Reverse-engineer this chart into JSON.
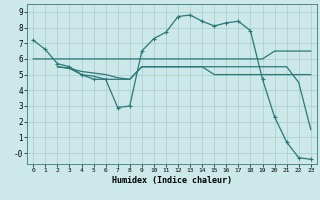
{
  "title": "",
  "xlabel": "Humidex (Indice chaleur)",
  "bg_color": "#cce8e8",
  "grid_color": "#aacccc",
  "line_color": "#2a7878",
  "xlim": [
    -0.5,
    23.5
  ],
  "ylim": [
    -0.7,
    9.5
  ],
  "xticks": [
    0,
    1,
    2,
    3,
    4,
    5,
    6,
    7,
    8,
    9,
    10,
    11,
    12,
    13,
    14,
    15,
    16,
    17,
    18,
    19,
    20,
    21,
    22,
    23
  ],
  "yticks": [
    0,
    1,
    2,
    3,
    4,
    5,
    6,
    7,
    8,
    9
  ],
  "ytick_labels": [
    "-0",
    "1",
    "2",
    "3",
    "4",
    "5",
    "6",
    "7",
    "8",
    "9"
  ],
  "line1_x": [
    0,
    1,
    2,
    3,
    4,
    5,
    6,
    7,
    8,
    9,
    10,
    11,
    12,
    13,
    14,
    15,
    16,
    17,
    18,
    19,
    20,
    21,
    22,
    23
  ],
  "line1_y": [
    7.2,
    6.6,
    5.7,
    5.5,
    5.0,
    4.7,
    4.7,
    2.9,
    3.0,
    6.5,
    7.3,
    7.7,
    8.7,
    8.8,
    8.4,
    8.1,
    8.3,
    8.4,
    7.8,
    4.7,
    2.3,
    0.7,
    -0.3,
    -0.4
  ],
  "line2_x": [
    0,
    1,
    2,
    3,
    4,
    5,
    6,
    7,
    8,
    9,
    10,
    11,
    12,
    13,
    14,
    15,
    16,
    17,
    18,
    19,
    20,
    21,
    22,
    23
  ],
  "line2_y": [
    6.0,
    6.0,
    6.0,
    6.0,
    6.0,
    6.0,
    6.0,
    6.0,
    6.0,
    6.0,
    6.0,
    6.0,
    6.0,
    6.0,
    6.0,
    6.0,
    6.0,
    6.0,
    6.0,
    6.0,
    6.5,
    6.5,
    6.5,
    6.5
  ],
  "line3_x": [
    2,
    3,
    4,
    5,
    6,
    7,
    8,
    9,
    10,
    11,
    12,
    13,
    14,
    15,
    16,
    17,
    18,
    19,
    20,
    21,
    22,
    23
  ],
  "line3_y": [
    5.5,
    5.4,
    5.2,
    5.1,
    5.0,
    4.8,
    4.7,
    5.5,
    5.5,
    5.5,
    5.5,
    5.5,
    5.5,
    5.0,
    5.0,
    5.0,
    5.0,
    5.0,
    5.0,
    5.0,
    5.0,
    5.0
  ],
  "line4_x": [
    2,
    3,
    4,
    5,
    6,
    7,
    8,
    9,
    10,
    11,
    12,
    13,
    14,
    15,
    16,
    17,
    18,
    19,
    20,
    21,
    22,
    23
  ],
  "line4_y": [
    5.5,
    5.4,
    5.0,
    4.9,
    4.7,
    4.7,
    4.7,
    5.5,
    5.5,
    5.5,
    5.5,
    5.5,
    5.5,
    5.5,
    5.5,
    5.5,
    5.5,
    5.5,
    5.5,
    5.5,
    4.5,
    1.5
  ]
}
